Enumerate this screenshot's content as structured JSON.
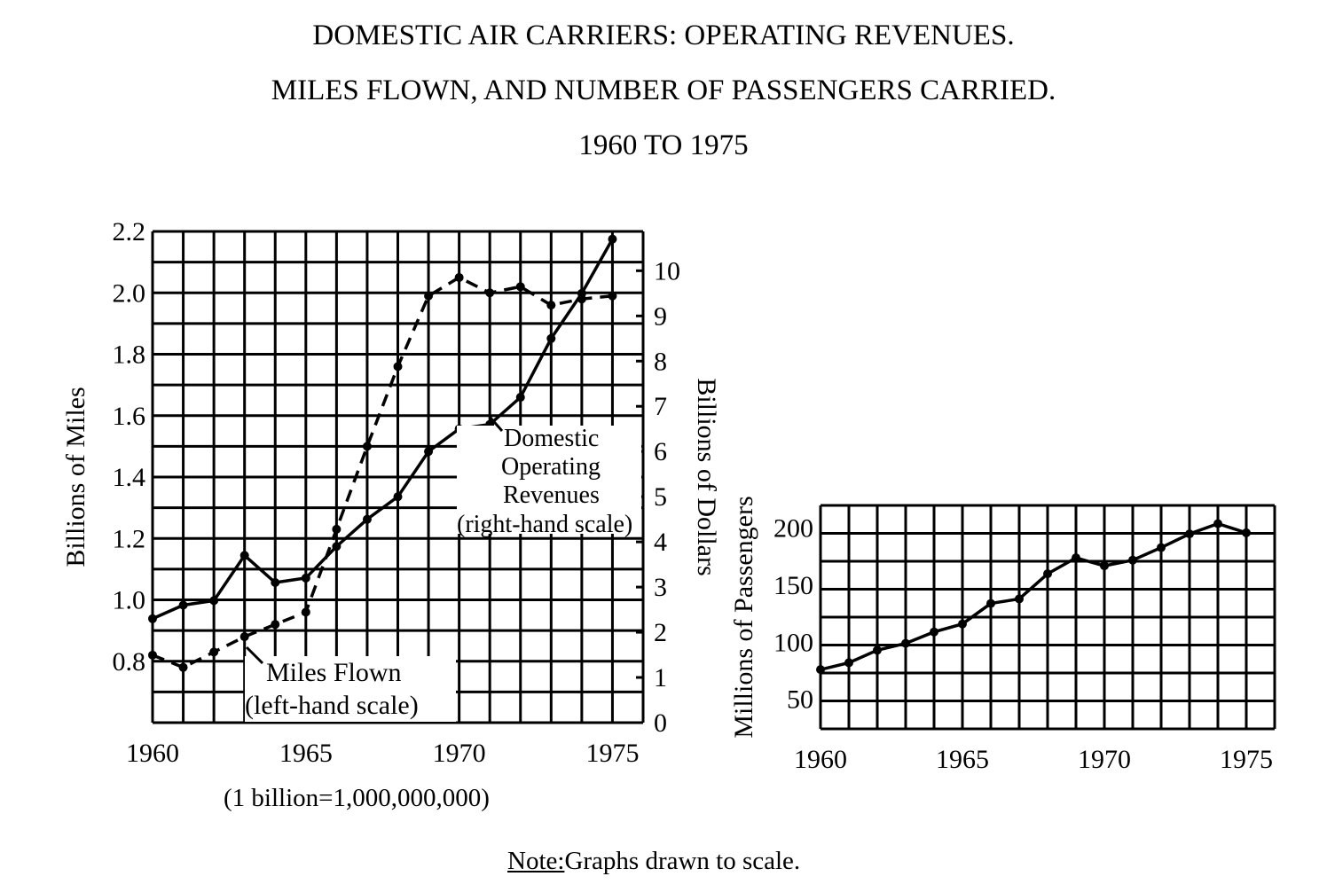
{
  "title_lines": [
    "DOMESTIC AIR CARRIERS: OPERATING REVENUES.",
    "MILES FLOWN, AND NUMBER OF PASSENGERS CARRIED.",
    "1960 TO 1975"
  ],
  "footnote_billion": "(1 billion=1,000,000,000)",
  "note": {
    "label": "Note:",
    "text": "Graphs drawn to scale."
  },
  "chart_data": [
    {
      "type": "line",
      "x": [
        1960,
        1961,
        1962,
        1963,
        1964,
        1965,
        1966,
        1967,
        1968,
        1969,
        1970,
        1971,
        1972,
        1973,
        1974,
        1975
      ],
      "xticks": [
        "1960",
        "1965",
        "1970",
        "1975"
      ],
      "xlim": [
        1960,
        1976
      ],
      "ylabel": "Billions of Miles",
      "ylim": [
        0.6,
        2.2
      ],
      "yticks": [
        "0.8",
        "1.0",
        "1.2",
        "1.4",
        "1.6",
        "1.8",
        "2.0",
        "2.2"
      ],
      "y2label": "Billions of Dollars",
      "y2lim": [
        0,
        10.87
      ],
      "y2ticks": [
        "0",
        "1",
        "2",
        "3",
        "4",
        "5",
        "6",
        "7",
        "8",
        "9",
        "10"
      ],
      "grid": true,
      "series": [
        {
          "name": "Miles Flown (left-hand scale)",
          "axis": "left",
          "style": "dashed",
          "values": [
            0.82,
            0.78,
            0.83,
            0.88,
            0.92,
            0.96,
            1.23,
            1.5,
            1.76,
            1.99,
            2.05,
            2.0,
            2.02,
            1.96,
            1.98,
            1.99
          ]
        },
        {
          "name": "Domestic Operating Revenues (right-hand scale)",
          "axis": "right",
          "style": "solid",
          "values": [
            2.3,
            2.6,
            2.7,
            3.7,
            3.1,
            3.2,
            3.9,
            4.5,
            5.0,
            6.0,
            6.5,
            6.6,
            7.2,
            8.5,
            9.5,
            10.7
          ]
        }
      ],
      "annotations": {
        "miles": [
          "Miles Flown",
          "(left-hand scale)"
        ],
        "revenues": [
          "Domestic",
          "Operating",
          "Revenues",
          "(right-hand scale)"
        ]
      }
    },
    {
      "type": "line",
      "x": [
        1960,
        1961,
        1962,
        1963,
        1964,
        1965,
        1966,
        1967,
        1968,
        1969,
        1970,
        1971,
        1972,
        1973,
        1974,
        1975
      ],
      "xticks": [
        "1960",
        "1965",
        "1970",
        "1975"
      ],
      "xlim": [
        1960,
        1976
      ],
      "ylabel": "Millions of Passengers",
      "ylim": [
        24,
        220
      ],
      "yticks": [
        "50",
        "100",
        "150",
        "200"
      ],
      "grid": true,
      "series": [
        {
          "style": "solid",
          "values": [
            76,
            82,
            93,
            99,
            109,
            116,
            134,
            138,
            160,
            174,
            167,
            172,
            183,
            195,
            204,
            196
          ]
        }
      ]
    }
  ]
}
